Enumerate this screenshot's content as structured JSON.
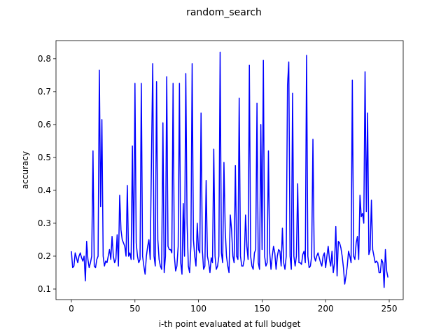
{
  "chart_data": {
    "type": "line",
    "title": "random_search",
    "xlabel": "i-th point evaluated at full budget",
    "ylabel": "accuracy",
    "x": [
      0,
      1,
      2,
      3,
      4,
      5,
      6,
      7,
      8,
      9,
      10,
      11,
      12,
      13,
      14,
      15,
      16,
      17,
      18,
      19,
      20,
      21,
      22,
      23,
      24,
      25,
      26,
      27,
      28,
      29,
      30,
      31,
      32,
      33,
      34,
      35,
      36,
      37,
      38,
      39,
      40,
      41,
      42,
      43,
      44,
      45,
      46,
      47,
      48,
      49,
      50,
      51,
      52,
      53,
      54,
      55,
      56,
      57,
      58,
      59,
      60,
      61,
      62,
      63,
      64,
      65,
      66,
      67,
      68,
      69,
      70,
      71,
      72,
      73,
      74,
      75,
      76,
      77,
      78,
      79,
      80,
      81,
      82,
      83,
      84,
      85,
      86,
      87,
      88,
      89,
      90,
      91,
      92,
      93,
      94,
      95,
      96,
      97,
      98,
      99,
      100,
      101,
      102,
      103,
      104,
      105,
      106,
      107,
      108,
      109,
      110,
      111,
      112,
      113,
      114,
      115,
      116,
      117,
      118,
      119,
      120,
      121,
      122,
      123,
      124,
      125,
      126,
      127,
      128,
      129,
      130,
      131,
      132,
      133,
      134,
      135,
      136,
      137,
      138,
      139,
      140,
      141,
      142,
      143,
      144,
      145,
      146,
      147,
      148,
      149,
      150,
      151,
      152,
      153,
      154,
      155,
      156,
      157,
      158,
      159,
      160,
      161,
      162,
      163,
      164,
      165,
      166,
      167,
      168,
      169,
      170,
      171,
      172,
      173,
      174,
      175,
      176,
      177,
      178,
      179,
      180,
      181,
      182,
      183,
      184,
      185,
      186,
      187,
      188,
      189,
      190,
      191,
      192,
      193,
      194,
      195,
      196,
      197,
      198,
      199,
      200,
      201,
      202,
      203,
      204,
      205,
      206,
      207,
      208,
      209,
      210,
      211,
      212,
      213,
      214,
      215,
      216,
      217,
      218,
      219,
      220,
      221,
      222,
      223,
      224,
      225,
      226,
      227,
      228,
      229,
      230,
      231,
      232,
      233,
      234,
      235,
      236,
      237,
      238,
      239,
      240,
      241,
      242,
      243,
      244,
      245,
      246,
      247,
      248,
      249
    ],
    "series": [
      {
        "name": "random_search",
        "color": "#0000ff",
        "values": [
          0.215,
          0.165,
          0.17,
          0.21,
          0.195,
          0.18,
          0.2,
          0.21,
          0.195,
          0.185,
          0.2,
          0.125,
          0.245,
          0.19,
          0.165,
          0.18,
          0.2,
          0.52,
          0.17,
          0.165,
          0.19,
          0.2,
          0.765,
          0.35,
          0.615,
          0.2,
          0.17,
          0.185,
          0.18,
          0.2,
          0.22,
          0.19,
          0.26,
          0.2,
          0.18,
          0.19,
          0.265,
          0.17,
          0.385,
          0.28,
          0.25,
          0.24,
          0.23,
          0.2,
          0.415,
          0.2,
          0.21,
          0.19,
          0.535,
          0.19,
          0.725,
          0.24,
          0.2,
          0.18,
          0.19,
          0.725,
          0.2,
          0.17,
          0.145,
          0.2,
          0.23,
          0.25,
          0.19,
          0.5,
          0.785,
          0.2,
          0.17,
          0.73,
          0.25,
          0.19,
          0.17,
          0.16,
          0.605,
          0.15,
          0.2,
          0.745,
          0.23,
          0.22,
          0.22,
          0.21,
          0.725,
          0.2,
          0.155,
          0.17,
          0.23,
          0.725,
          0.18,
          0.145,
          0.36,
          0.2,
          0.755,
          0.3,
          0.17,
          0.15,
          0.23,
          0.785,
          0.25,
          0.2,
          0.17,
          0.3,
          0.22,
          0.21,
          0.635,
          0.22,
          0.16,
          0.17,
          0.43,
          0.2,
          0.18,
          0.15,
          0.195,
          0.18,
          0.525,
          0.2,
          0.16,
          0.17,
          0.2,
          0.82,
          0.21,
          0.18,
          0.485,
          0.28,
          0.2,
          0.17,
          0.15,
          0.325,
          0.28,
          0.2,
          0.18,
          0.475,
          0.2,
          0.19,
          0.68,
          0.2,
          0.17,
          0.17,
          0.19,
          0.325,
          0.23,
          0.19,
          0.78,
          0.2,
          0.17,
          0.16,
          0.21,
          0.22,
          0.665,
          0.18,
          0.16,
          0.6,
          0.22,
          0.795,
          0.2,
          0.17,
          0.18,
          0.52,
          0.21,
          0.16,
          0.2,
          0.23,
          0.21,
          0.16,
          0.2,
          0.22,
          0.215,
          0.17,
          0.285,
          0.18,
          0.16,
          0.2,
          0.72,
          0.79,
          0.2,
          0.16,
          0.695,
          0.2,
          0.17,
          0.2,
          0.42,
          0.18,
          0.18,
          0.175,
          0.205,
          0.215,
          0.18,
          0.81,
          0.2,
          0.165,
          0.17,
          0.2,
          0.555,
          0.2,
          0.185,
          0.2,
          0.21,
          0.195,
          0.18,
          0.17,
          0.2,
          0.21,
          0.165,
          0.2,
          0.23,
          0.19,
          0.17,
          0.215,
          0.15,
          0.18,
          0.29,
          0.14,
          0.245,
          0.24,
          0.225,
          0.2,
          0.165,
          0.115,
          0.14,
          0.17,
          0.215,
          0.2,
          0.18,
          0.735,
          0.2,
          0.19,
          0.24,
          0.26,
          0.19,
          0.385,
          0.32,
          0.33,
          0.3,
          0.76,
          0.335,
          0.635,
          0.205,
          0.22,
          0.37,
          0.22,
          0.2,
          0.18,
          0.185,
          0.18,
          0.15,
          0.15,
          0.19,
          0.18,
          0.105,
          0.22,
          0.155,
          0.135
        ]
      }
    ],
    "xlim": [
      -12.1,
      261
    ],
    "ylim": [
      0.068,
      0.855
    ],
    "xticks": [
      0,
      50,
      100,
      150,
      200,
      250
    ],
    "yticks": [
      0.1,
      0.2,
      0.3,
      0.4,
      0.5,
      0.6,
      0.7,
      0.8
    ]
  }
}
